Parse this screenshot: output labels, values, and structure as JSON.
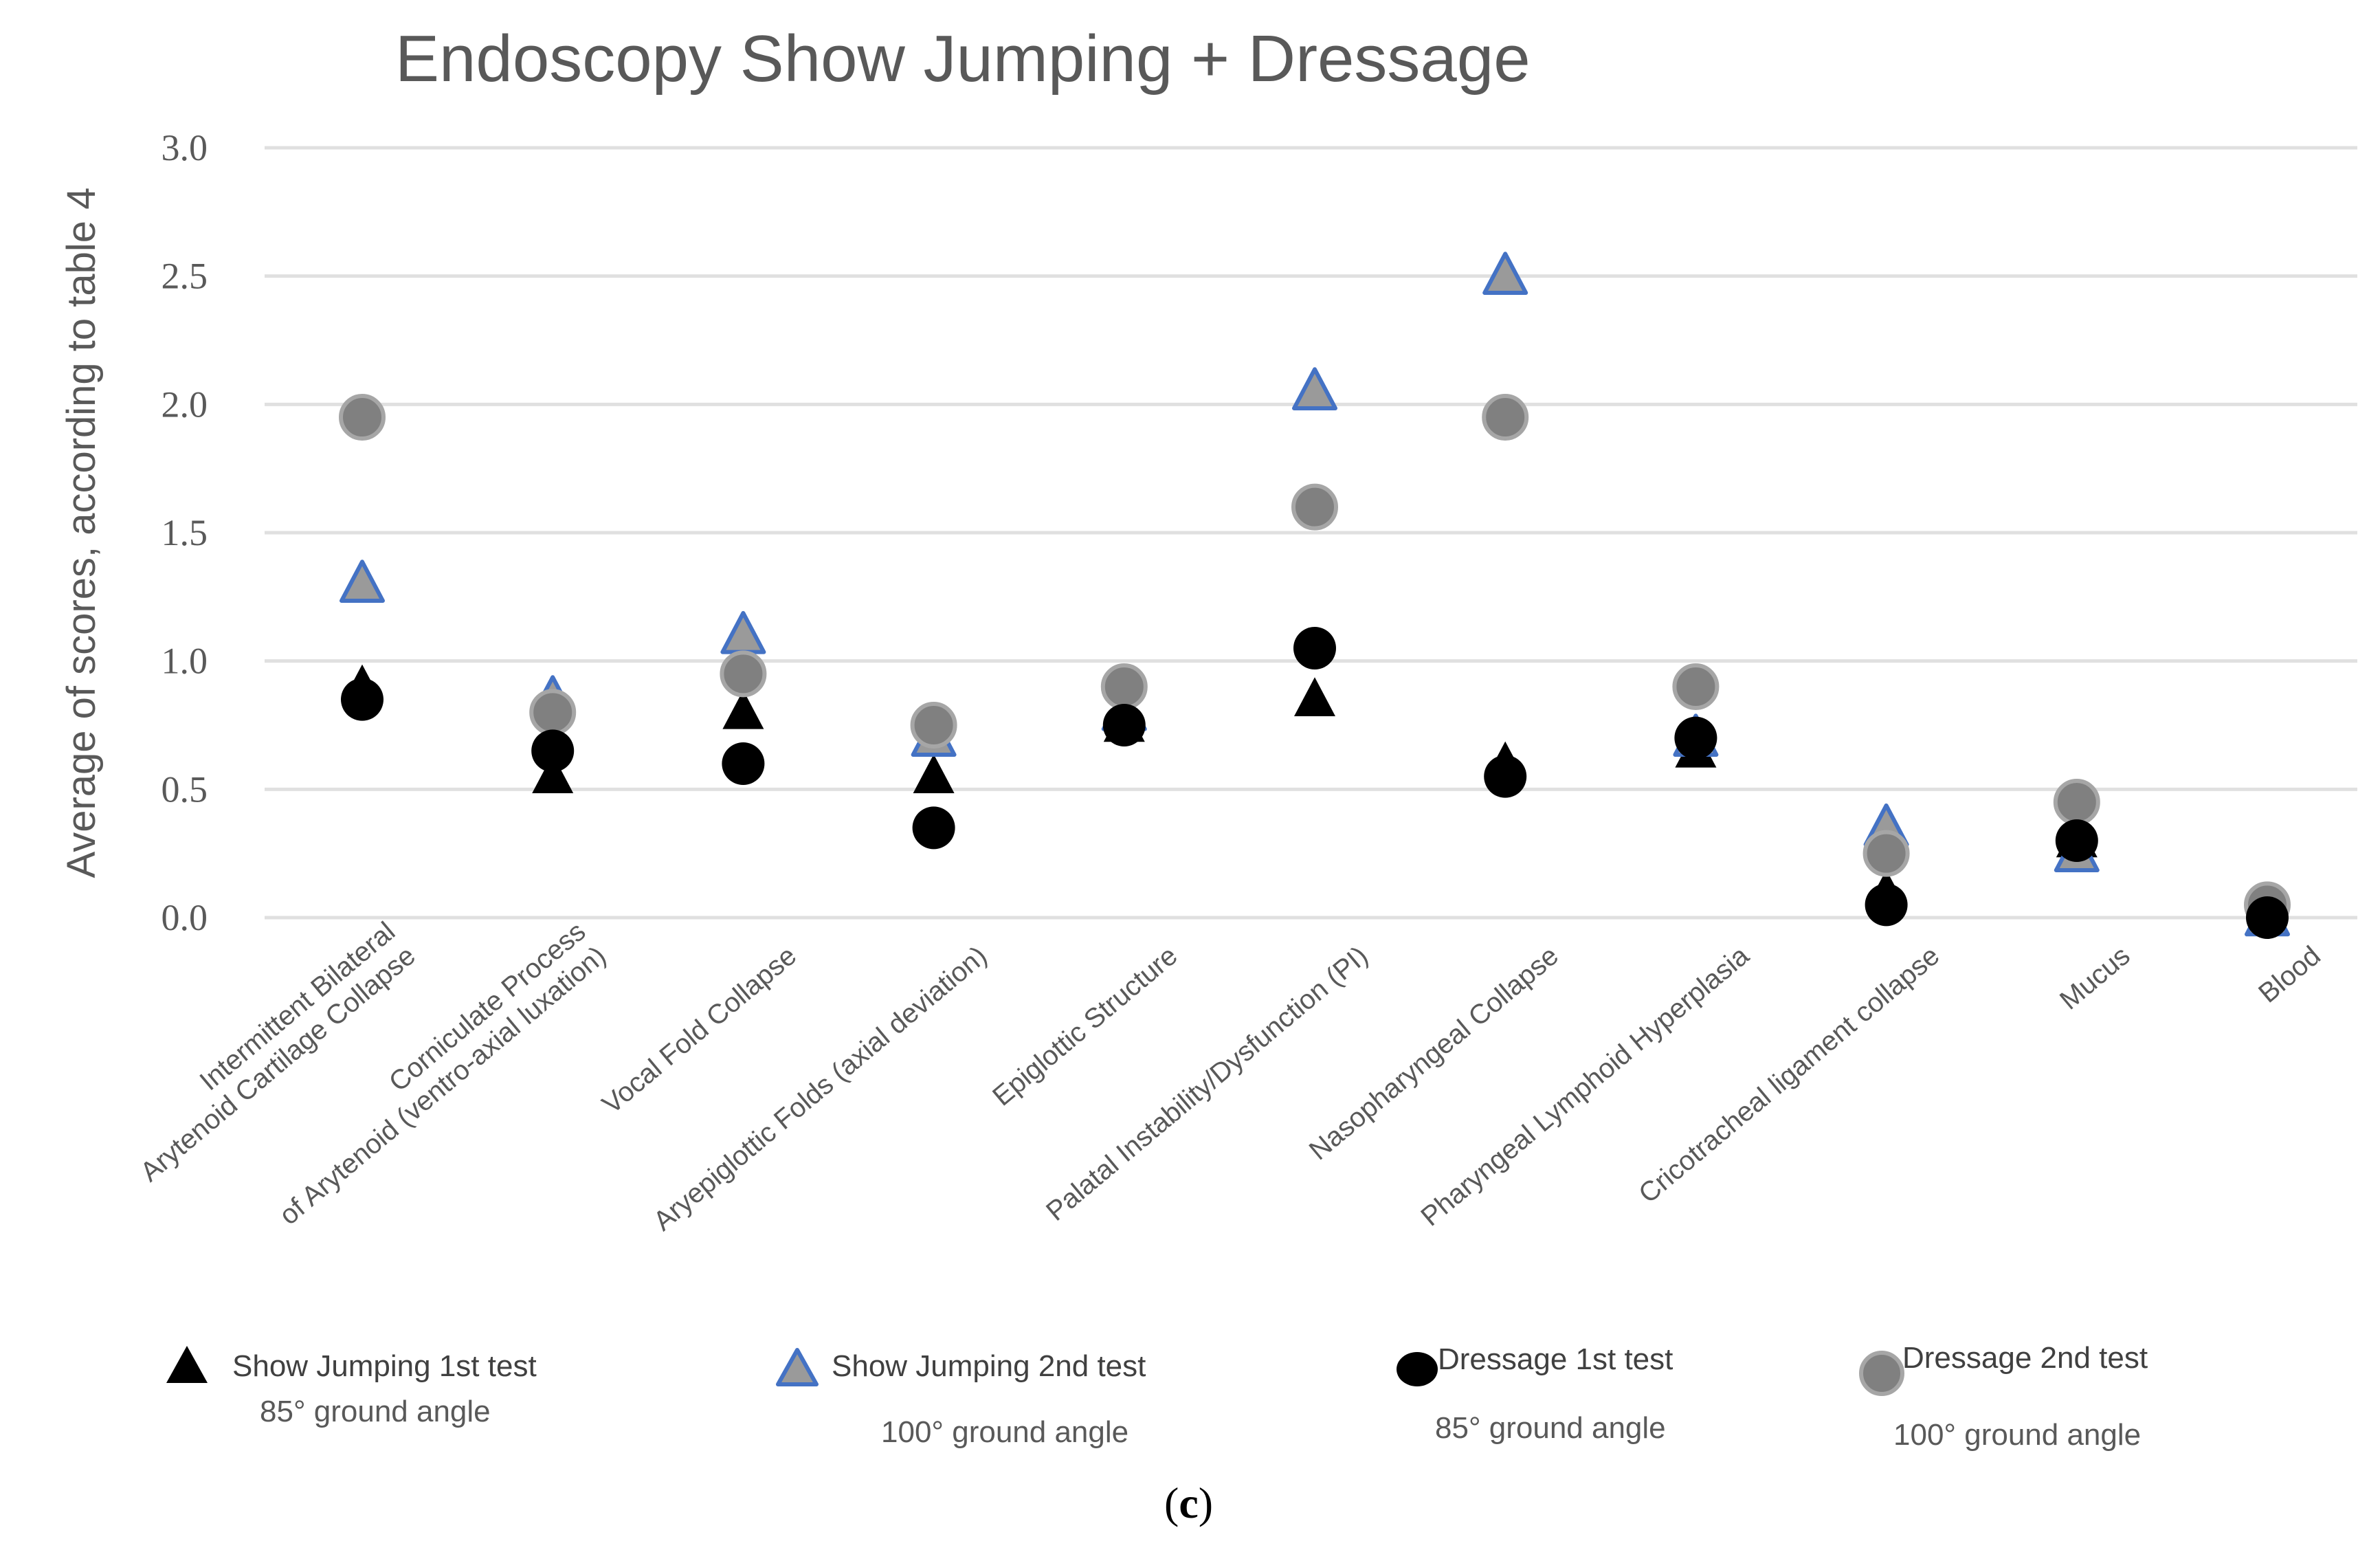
{
  "figure_caption": {
    "open": "(",
    "letter": "c",
    "close": ")"
  },
  "colors": {
    "sj1_fill": "#000000",
    "sj2_fill": "#9a9a9a",
    "sj2_stroke": "#4472c4",
    "d1_fill": "#000000",
    "d2_fill": "#808080",
    "d2_stroke": "#a6a6a6",
    "gridline": "#e0e0e0",
    "text": "#595959"
  },
  "chart_data": {
    "type": "scatter",
    "title": "Endoscopy  Show Jumping + Dressage",
    "xlabel": "",
    "ylabel": "Average of scores, according to table 4",
    "ylim": [
      0,
      3
    ],
    "yticks": [
      "0.0",
      "0.5",
      "1.0",
      "1.5",
      "2.0",
      "2.5",
      "3.0"
    ],
    "grid": true,
    "categories": [
      [
        "Intermittent Bilateral",
        "Arytenoid Cartilage Collapse"
      ],
      [
        "Corniculate Process",
        "of Arytenoid (ventro-axial luxation)"
      ],
      [
        "Vocal Fold Collapse"
      ],
      [
        "Aryepiglottic Folds (axial deviation)"
      ],
      [
        "Epiglottic Structure"
      ],
      [
        "Palatal Instability/Dysfunction (PI)"
      ],
      [
        "Nasopharyngeal Collapse"
      ],
      [
        "Pharyngeal Lymphoid Hyperplasia"
      ],
      [
        "Cricotracheal ligament collapse"
      ],
      [
        "Mucus"
      ],
      [
        "Blood"
      ]
    ],
    "series": [
      {
        "name": "Show Jumping 1st test",
        "subtitle": "85°  ground angle",
        "marker": "triangle-black",
        "values": [
          0.9,
          0.55,
          0.8,
          0.55,
          0.75,
          0.85,
          0.6,
          0.65,
          0.1,
          0.3,
          0.0
        ]
      },
      {
        "name": "Show Jumping 2nd test",
        "subtitle": "100°  ground angle",
        "marker": "triangle-grey-blue",
        "values": [
          1.3,
          0.85,
          1.1,
          0.7,
          0.8,
          2.05,
          2.5,
          0.7,
          0.35,
          0.25,
          0.0
        ]
      },
      {
        "name": "Dressage  1st test",
        "subtitle": "85°  ground angle",
        "marker": "circle-black",
        "values": [
          0.85,
          0.65,
          0.6,
          0.35,
          0.75,
          1.05,
          0.55,
          0.7,
          0.05,
          0.3,
          0.0
        ]
      },
      {
        "name": "Dressage  2nd test",
        "subtitle": "100°  ground angle",
        "marker": "circle-grey",
        "values": [
          1.95,
          0.8,
          0.95,
          0.75,
          0.9,
          1.6,
          1.95,
          0.9,
          0.25,
          0.45,
          0.05
        ]
      }
    ]
  }
}
